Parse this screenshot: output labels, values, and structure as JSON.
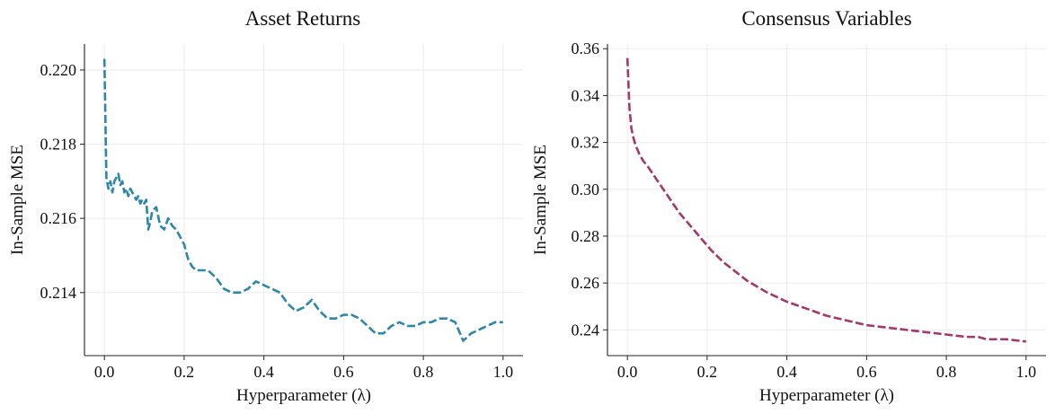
{
  "chart_data": [
    {
      "type": "line",
      "title": "Asset Returns",
      "xlabel": "Hyperparameter (λ)",
      "ylabel": "In-Sample MSE",
      "xlim": [
        -0.05,
        1.05
      ],
      "ylim": [
        0.2123,
        0.2207
      ],
      "xticks": [
        0.0,
        0.2,
        0.4,
        0.6,
        0.8,
        1.0
      ],
      "xtick_labels": [
        "0.0",
        "0.2",
        "0.4",
        "0.6",
        "0.8",
        "1.0"
      ],
      "yticks": [
        0.214,
        0.216,
        0.218,
        0.22
      ],
      "ytick_labels": [
        "0.214",
        "0.216",
        "0.218",
        "0.220"
      ],
      "grid": true,
      "series": [
        {
          "color": "#2e86a8",
          "linestyle": "dashed",
          "x": [
            0.0,
            0.005,
            0.01,
            0.015,
            0.02,
            0.025,
            0.03,
            0.035,
            0.04,
            0.045,
            0.05,
            0.055,
            0.06,
            0.065,
            0.07,
            0.075,
            0.08,
            0.085,
            0.09,
            0.095,
            0.1,
            0.105,
            0.11,
            0.115,
            0.12,
            0.13,
            0.14,
            0.15,
            0.16,
            0.17,
            0.18,
            0.19,
            0.2,
            0.21,
            0.22,
            0.23,
            0.24,
            0.25,
            0.26,
            0.28,
            0.3,
            0.32,
            0.34,
            0.36,
            0.38,
            0.4,
            0.42,
            0.44,
            0.46,
            0.48,
            0.5,
            0.52,
            0.54,
            0.56,
            0.58,
            0.6,
            0.62,
            0.64,
            0.66,
            0.68,
            0.7,
            0.72,
            0.74,
            0.76,
            0.78,
            0.8,
            0.82,
            0.84,
            0.86,
            0.88,
            0.9,
            0.92,
            0.94,
            0.96,
            0.98,
            1.0
          ],
          "y": [
            0.2203,
            0.2171,
            0.2168,
            0.217,
            0.2167,
            0.217,
            0.2171,
            0.2172,
            0.2169,
            0.217,
            0.2167,
            0.2168,
            0.2166,
            0.2168,
            0.2167,
            0.2166,
            0.2165,
            0.2166,
            0.2164,
            0.2165,
            0.2164,
            0.2165,
            0.2157,
            0.2159,
            0.2162,
            0.2163,
            0.2158,
            0.2157,
            0.216,
            0.2158,
            0.2157,
            0.2155,
            0.2153,
            0.2149,
            0.2147,
            0.2146,
            0.2146,
            0.2146,
            0.2146,
            0.2144,
            0.2141,
            0.214,
            0.214,
            0.2141,
            0.2143,
            0.2142,
            0.2141,
            0.214,
            0.2137,
            0.2135,
            0.2136,
            0.2138,
            0.2135,
            0.2133,
            0.2133,
            0.2134,
            0.2134,
            0.2133,
            0.2131,
            0.2129,
            0.2129,
            0.2131,
            0.2132,
            0.2131,
            0.2131,
            0.2132,
            0.2132,
            0.2133,
            0.2133,
            0.2132,
            0.2127,
            0.2129,
            0.213,
            0.2131,
            0.2132,
            0.2132
          ]
        }
      ]
    },
    {
      "type": "line",
      "title": "Consensus Variables",
      "xlabel": "Hyperparameter (λ)",
      "ylabel": "In-Sample MSE",
      "xlim": [
        -0.05,
        1.05
      ],
      "ylim": [
        0.229,
        0.362
      ],
      "xticks": [
        0.0,
        0.2,
        0.4,
        0.6,
        0.8,
        1.0
      ],
      "xtick_labels": [
        "0.0",
        "0.2",
        "0.4",
        "0.6",
        "0.8",
        "1.0"
      ],
      "yticks": [
        0.24,
        0.26,
        0.28,
        0.3,
        0.32,
        0.34,
        0.36
      ],
      "ytick_labels": [
        "0.24",
        "0.26",
        "0.28",
        "0.30",
        "0.32",
        "0.34",
        "0.36"
      ],
      "grid": true,
      "series": [
        {
          "color": "#a3386b",
          "linestyle": "dashed",
          "x": [
            0.0,
            0.005,
            0.01,
            0.015,
            0.02,
            0.03,
            0.04,
            0.05,
            0.07,
            0.09,
            0.11,
            0.13,
            0.15,
            0.18,
            0.21,
            0.24,
            0.27,
            0.3,
            0.35,
            0.4,
            0.45,
            0.5,
            0.55,
            0.6,
            0.65,
            0.7,
            0.75,
            0.8,
            0.85,
            0.88,
            0.9,
            0.95,
            1.0
          ],
          "y": [
            0.356,
            0.335,
            0.326,
            0.322,
            0.319,
            0.315,
            0.312,
            0.31,
            0.305,
            0.3,
            0.295,
            0.29,
            0.286,
            0.28,
            0.274,
            0.269,
            0.265,
            0.261,
            0.256,
            0.252,
            0.249,
            0.246,
            0.244,
            0.242,
            0.241,
            0.24,
            0.239,
            0.238,
            0.237,
            0.237,
            0.236,
            0.236,
            0.235
          ]
        }
      ]
    }
  ]
}
